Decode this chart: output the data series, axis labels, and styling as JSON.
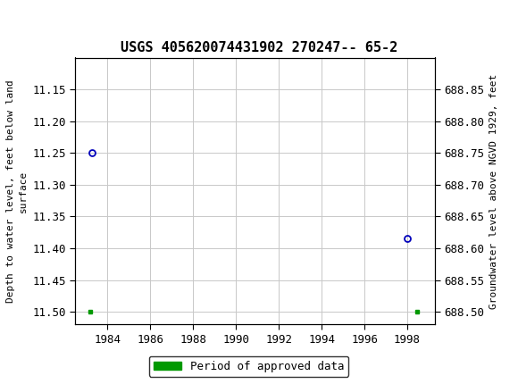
{
  "title": "USGS 405620074431902 270247-- 65-2",
  "title_fontsize": 11,
  "header_color": "#1a6b3c",
  "bg_color": "#ffffff",
  "plot_bg_color": "#ffffff",
  "grid_color": "#c8c8c8",
  "open_circles": [
    {
      "year": 1983.3,
      "depth": 11.25
    },
    {
      "year": 1998.0,
      "depth": 11.385
    }
  ],
  "green_squares": [
    {
      "year": 1983.2,
      "depth": 11.5
    },
    {
      "year": 1998.45,
      "depth": 11.5
    }
  ],
  "xlim": [
    1982.5,
    1999.3
  ],
  "xticks": [
    1984,
    1986,
    1988,
    1990,
    1992,
    1994,
    1996,
    1998
  ],
  "ylim_left_top": 11.1,
  "ylim_left_bottom": 11.52,
  "yticks_left": [
    11.15,
    11.2,
    11.25,
    11.3,
    11.35,
    11.4,
    11.45,
    11.5
  ],
  "ylim_right_top": 688.9,
  "ylim_right_bottom": 688.48,
  "yticks_right": [
    688.85,
    688.8,
    688.75,
    688.7,
    688.65,
    688.6,
    688.55,
    688.5
  ],
  "ylabel_left": "Depth to water level, feet below land\nsurface",
  "ylabel_right": "Groundwater level above NGVD 1929, feet",
  "legend_label": "Period of approved data",
  "legend_color": "#009900",
  "point_color": "#0000bb",
  "point_size": 5,
  "tick_fontsize": 9,
  "label_fontsize": 8
}
